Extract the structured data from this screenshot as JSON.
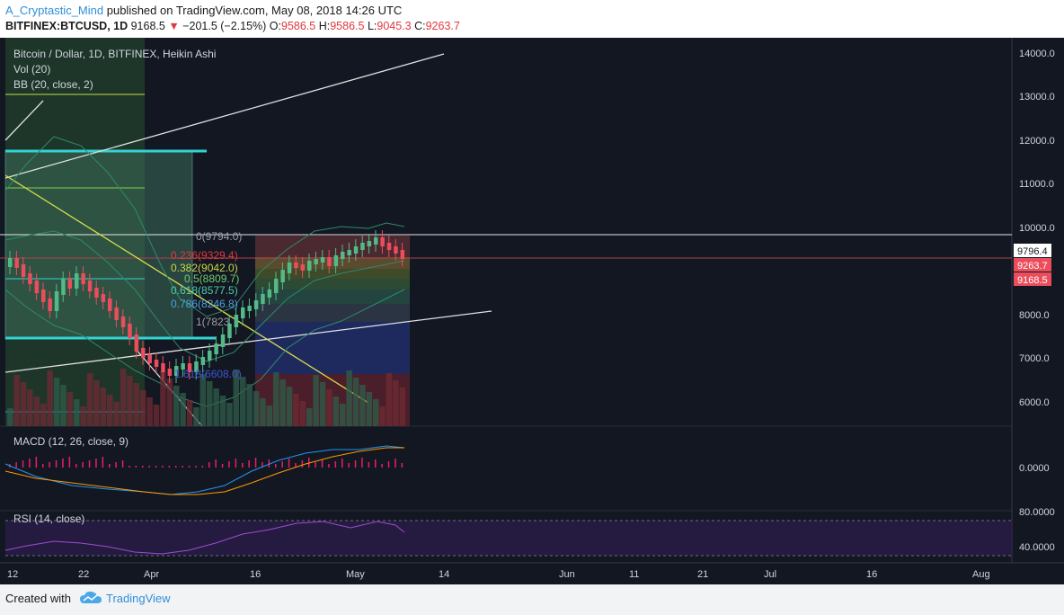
{
  "header": {
    "author": "A_Cryptastic_Mind",
    "published": "published on TradingView.com, May 08, 2018 14:26 UTC",
    "symbol": "BITFINEX:BTCUSD, 1D",
    "last": "9168.5",
    "change_arrow": "▼",
    "change": "−201.5 (−2.15%)",
    "o_label": "O:",
    "o_value": "9586.5",
    "h_label": "H:",
    "h_value": "9586.5",
    "l_label": "L:",
    "l_value": "9045.3",
    "c_label": "C:",
    "c_value": "9263.7"
  },
  "legend": {
    "title": "Bitcoin / Dollar, 1D, BITFINEX, Heikin Ashi",
    "vol": "Vol (20)",
    "bb": "BB (20, close, 2)",
    "macd": "MACD (12, 26, close, 9)",
    "rsi": "RSI (14, close)"
  },
  "price_axis": [
    "14000.0",
    "13000.0",
    "12000.0",
    "11000.0",
    "10000.0",
    "8000.0",
    "7000.0",
    "6000.0"
  ],
  "price_tags": {
    "white": "9796.4",
    "red1": "9263.7",
    "red2": "9168.5"
  },
  "macd_axis": [
    "0.0000"
  ],
  "rsi_axis": [
    "80.0000",
    "40.0000"
  ],
  "time_axis": [
    "12",
    "22",
    "Apr",
    "16",
    "May",
    "14",
    "Jun",
    "11",
    "21",
    "Jul",
    "16",
    "Aug"
  ],
  "fib_labels": [
    "0(9794.0)",
    "0.236(9329.4)",
    "0.382(9042.0)",
    "0.5(8809.7)",
    "0.618(8577.5)",
    "0.786(8246.8)",
    "1(7823",
    "1.618(6608.0)"
  ],
  "footer": {
    "created": "Created with",
    "brand": "TradingView"
  },
  "colors": {
    "background": "#131722",
    "up": "#53b987",
    "down": "#eb4d5c",
    "accent": "#2f8fd8"
  }
}
